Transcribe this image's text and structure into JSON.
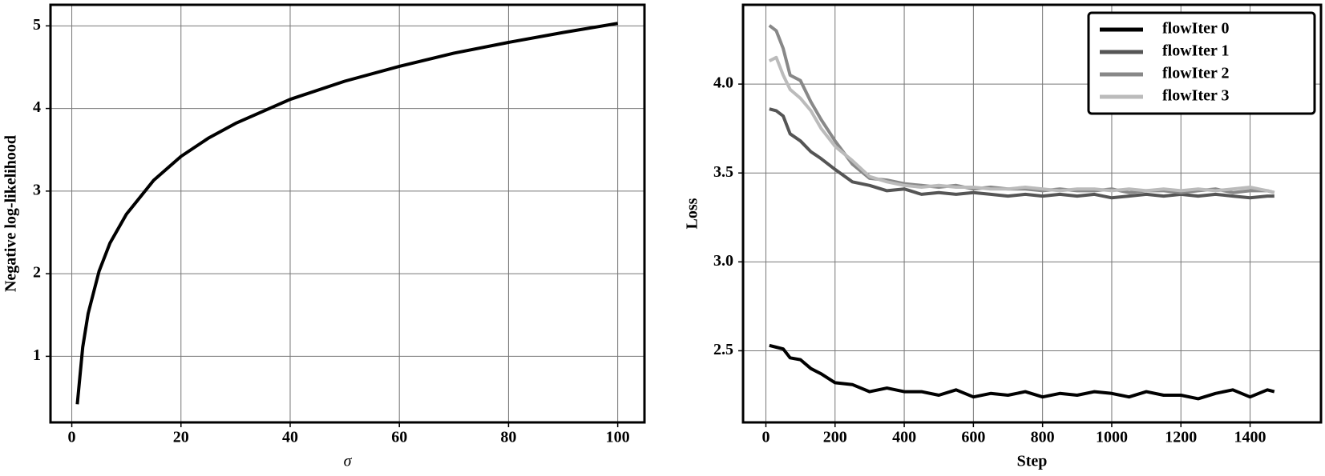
{
  "chart_data": [
    {
      "type": "line",
      "xlabel": "σ",
      "ylabel": "Negative log-likelihood",
      "x": [
        1,
        2,
        3,
        5,
        7,
        10,
        15,
        20,
        25,
        30,
        40,
        50,
        60,
        70,
        80,
        90,
        100
      ],
      "values": [
        0.42,
        1.11,
        1.52,
        2.03,
        2.37,
        2.72,
        3.13,
        3.42,
        3.64,
        3.82,
        4.11,
        4.33,
        4.51,
        4.67,
        4.8,
        4.92,
        5.03
      ],
      "color": "#000000",
      "xlim": [
        -3.9,
        104.9
      ],
      "ylim": [
        0.2,
        5.255
      ],
      "xticks": [
        0,
        20,
        40,
        60,
        80,
        100
      ],
      "yticks": [
        1,
        2,
        3,
        4,
        5
      ],
      "grid": true
    },
    {
      "type": "line",
      "xlabel": "Step",
      "ylabel": "Loss",
      "x": [
        10,
        30,
        50,
        70,
        100,
        130,
        160,
        200,
        250,
        300,
        350,
        400,
        450,
        500,
        550,
        600,
        650,
        700,
        750,
        800,
        850,
        900,
        950,
        1000,
        1050,
        1100,
        1150,
        1200,
        1250,
        1300,
        1350,
        1400,
        1450,
        1470
      ],
      "series": [
        {
          "name": "flowIter 0",
          "color": "#000000",
          "values": [
            2.53,
            2.52,
            2.51,
            2.46,
            2.45,
            2.4,
            2.37,
            2.32,
            2.31,
            2.27,
            2.29,
            2.27,
            2.27,
            2.25,
            2.28,
            2.24,
            2.26,
            2.25,
            2.27,
            2.24,
            2.26,
            2.25,
            2.27,
            2.26,
            2.24,
            2.27,
            2.25,
            2.25,
            2.23,
            2.26,
            2.28,
            2.24,
            2.28,
            2.27
          ]
        },
        {
          "name": "flowIter 1",
          "color": "#555555",
          "values": [
            3.86,
            3.85,
            3.82,
            3.72,
            3.68,
            3.62,
            3.58,
            3.52,
            3.45,
            3.43,
            3.4,
            3.41,
            3.38,
            3.39,
            3.38,
            3.39,
            3.38,
            3.37,
            3.38,
            3.37,
            3.38,
            3.37,
            3.38,
            3.36,
            3.37,
            3.38,
            3.37,
            3.38,
            3.37,
            3.38,
            3.37,
            3.36,
            3.37,
            3.37
          ]
        },
        {
          "name": "flowIter 2",
          "color": "#888888",
          "values": [
            4.33,
            4.3,
            4.2,
            4.05,
            4.02,
            3.9,
            3.8,
            3.68,
            3.55,
            3.47,
            3.46,
            3.44,
            3.43,
            3.42,
            3.43,
            3.41,
            3.42,
            3.41,
            3.41,
            3.4,
            3.41,
            3.4,
            3.4,
            3.41,
            3.39,
            3.4,
            3.4,
            3.39,
            3.4,
            3.41,
            3.39,
            3.4,
            3.4,
            3.39
          ]
        },
        {
          "name": "flowIter 3",
          "color": "#bbbbbb",
          "values": [
            4.13,
            4.15,
            4.05,
            3.97,
            3.92,
            3.85,
            3.75,
            3.65,
            3.57,
            3.48,
            3.45,
            3.43,
            3.42,
            3.43,
            3.42,
            3.42,
            3.41,
            3.41,
            3.42,
            3.41,
            3.4,
            3.41,
            3.41,
            3.4,
            3.41,
            3.4,
            3.41,
            3.4,
            3.41,
            3.4,
            3.41,
            3.42,
            3.4,
            3.39
          ]
        }
      ],
      "xlim": [
        -66,
        1605
      ],
      "ylim": [
        2.097,
        4.446
      ],
      "xticks": [
        0,
        200,
        400,
        600,
        800,
        1000,
        1200,
        1400
      ],
      "yticks": [
        2.5,
        {
          "value": 3.0,
          "label": "3.0"
        },
        3.5,
        {
          "value": 4.0,
          "label": "4.0"
        }
      ],
      "grid": true,
      "legend": "upper right"
    }
  ]
}
